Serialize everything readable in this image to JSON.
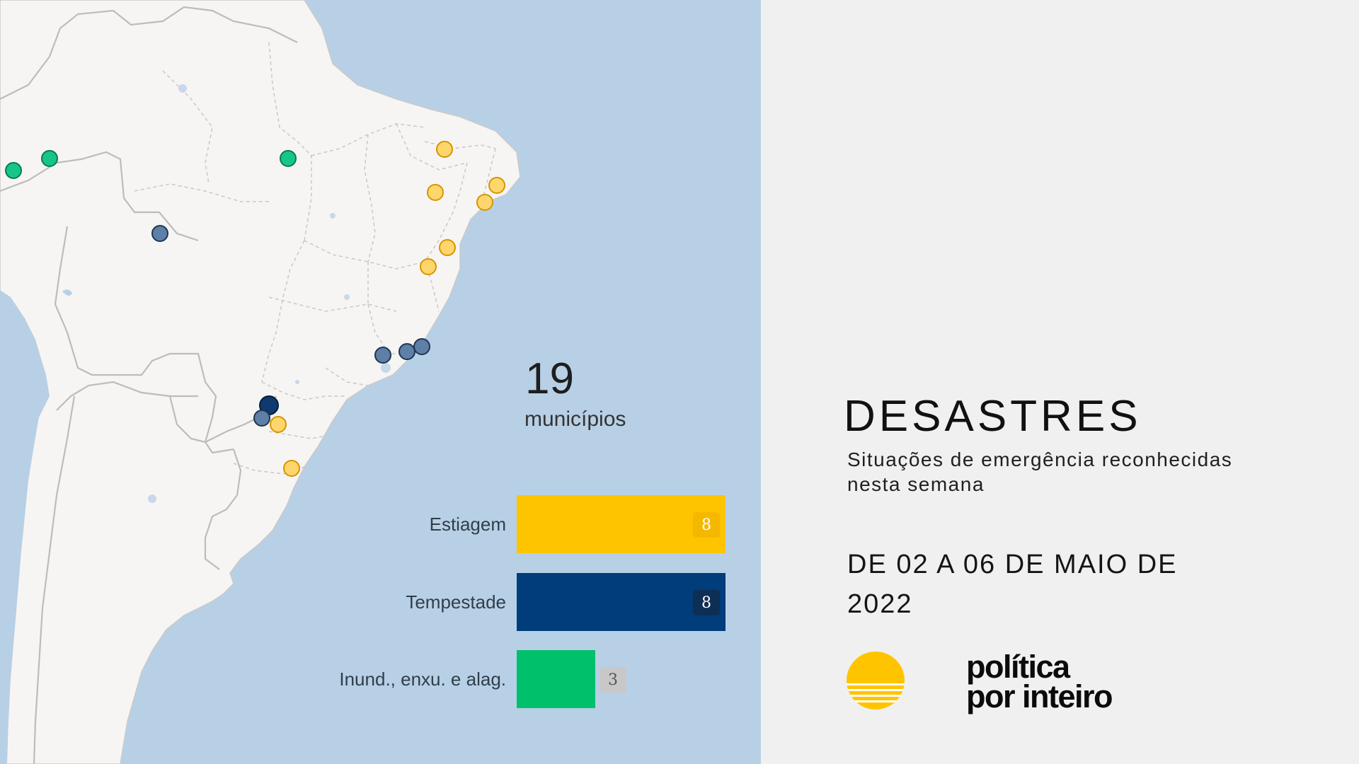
{
  "summary": {
    "count": "19",
    "unit": "municípios"
  },
  "categories": [
    {
      "label": "Estiagem",
      "value": 8,
      "color": "#ffc400",
      "badge_bg": "#f5b800",
      "badge_color": "#ffffff"
    },
    {
      "label": "Tempestade",
      "value": 8,
      "color": "#003d7a",
      "badge_bg": "#0d2f55",
      "badge_color": "#ffffff"
    },
    {
      "label": "Inund., enxu. e alag.",
      "value": 3,
      "color": "#00c06c",
      "badge_bg": "#c8c8c8",
      "badge_color": "#555555"
    }
  ],
  "bar_max": 8,
  "markers": {
    "estiagem": {
      "fill": "#ffd66b",
      "stroke": "#d69500"
    },
    "tempestade": {
      "fill": "#5e7fa6",
      "stroke": "#1f3556"
    },
    "tempestade_dark": {
      "fill": "#0f3a6e",
      "stroke": "#061d3a"
    },
    "inundacao": {
      "fill": "#17c58a",
      "stroke": "#0b7a54"
    }
  },
  "title": "DESASTRES",
  "subtitle": "Situações de emergência reconhecidas nesta semana",
  "date": "DE 02 A 06 DE MAIO DE 2022",
  "logo": {
    "line1": "política",
    "line2": "por inteiro",
    "colors": [
      "#ffc400",
      "#ffffff"
    ]
  }
}
